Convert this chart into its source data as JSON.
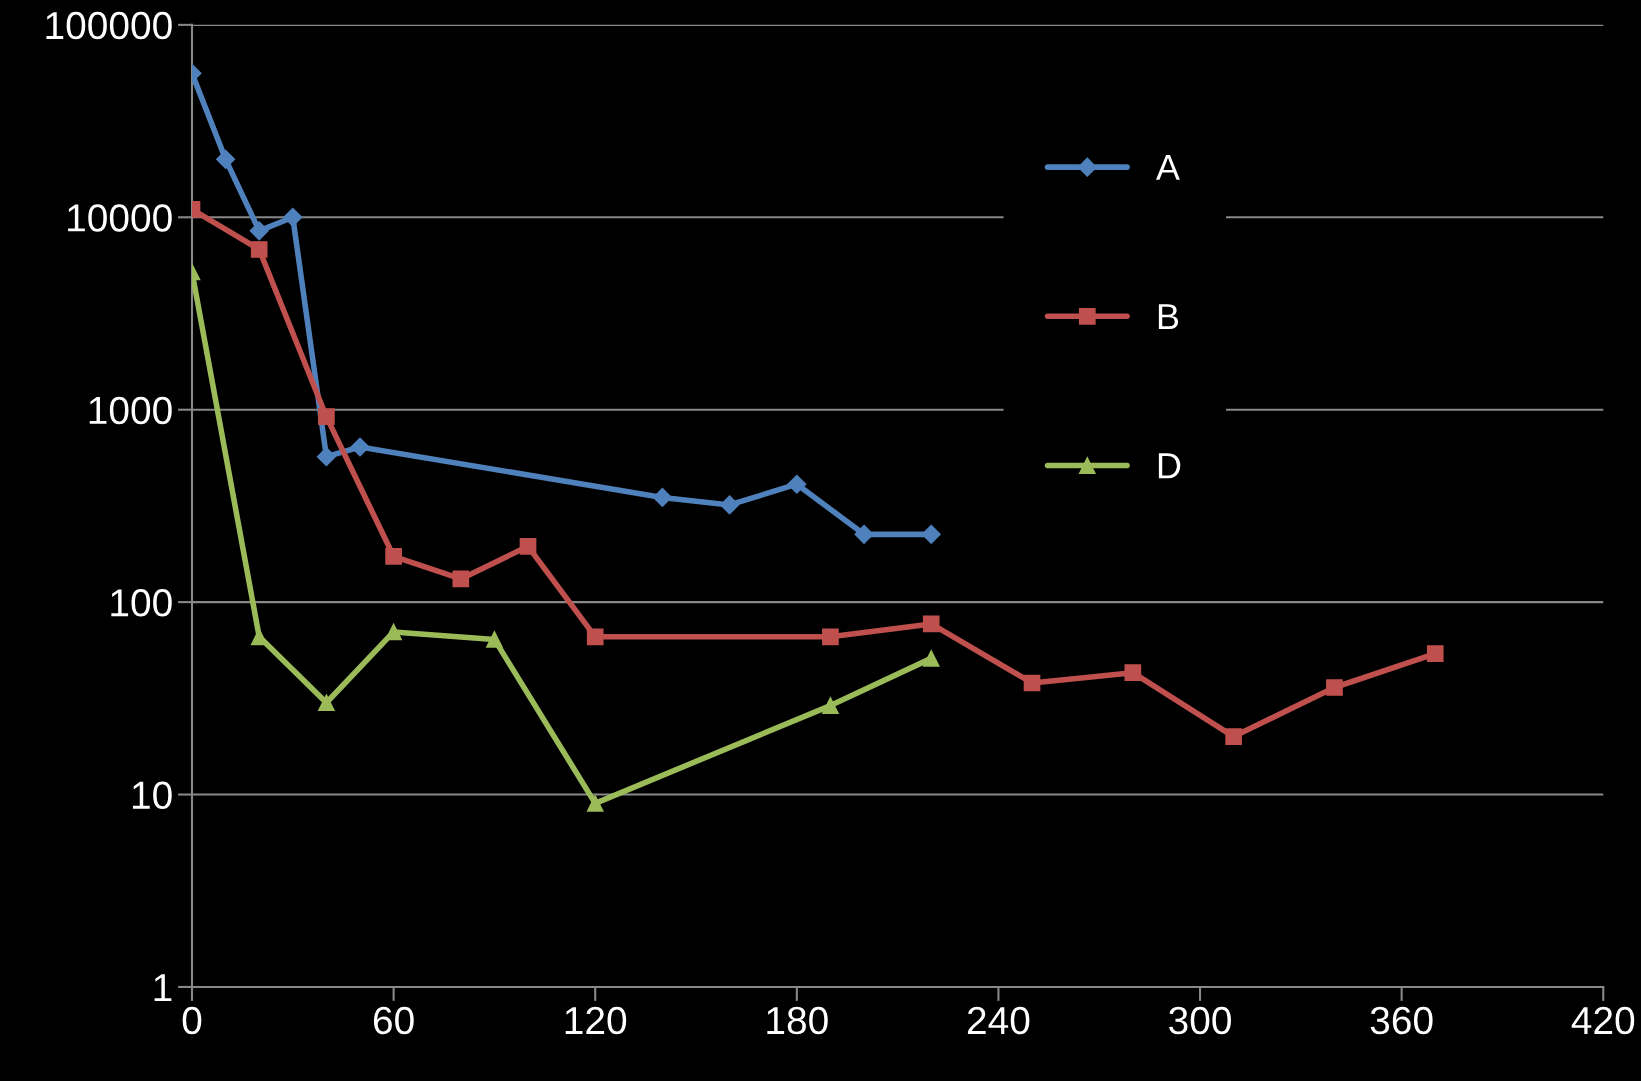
{
  "chart_data": {
    "type": "line",
    "log": "y",
    "grid": "y",
    "legend": "top right",
    "line_style": "solid",
    "xlim": [
      0,
      420
    ],
    "xticks": [
      0,
      60,
      120,
      180,
      240,
      300,
      360,
      420
    ],
    "ylim": [
      1,
      100000
    ],
    "yticks": [
      1,
      10,
      100,
      1000,
      10000,
      100000
    ],
    "series": [
      {
        "name": "A",
        "color": "#4f81bd",
        "marker": "diamond",
        "x": [
          0,
          10,
          20,
          30,
          40,
          50,
          140,
          160,
          180,
          200,
          220
        ],
        "values": [
          56000,
          20000,
          8500,
          10000,
          570,
          640,
          350,
          320,
          410,
          225,
          225
        ]
      },
      {
        "name": "B",
        "color": "#c0504d",
        "marker": "square",
        "x": [
          0,
          20,
          40,
          60,
          80,
          100,
          120,
          190,
          220,
          250,
          280,
          310,
          340,
          370
        ],
        "values": [
          11000,
          6800,
          920,
          173,
          132,
          195,
          66,
          66,
          77,
          38,
          43,
          20,
          36,
          54
        ]
      },
      {
        "name": "D",
        "color": "#9bbb59",
        "marker": "triangle",
        "x": [
          0,
          20,
          40,
          60,
          90,
          120,
          190,
          220
        ],
        "values": [
          5200,
          66,
          30,
          70,
          64,
          9,
          29,
          51
        ]
      }
    ]
  }
}
